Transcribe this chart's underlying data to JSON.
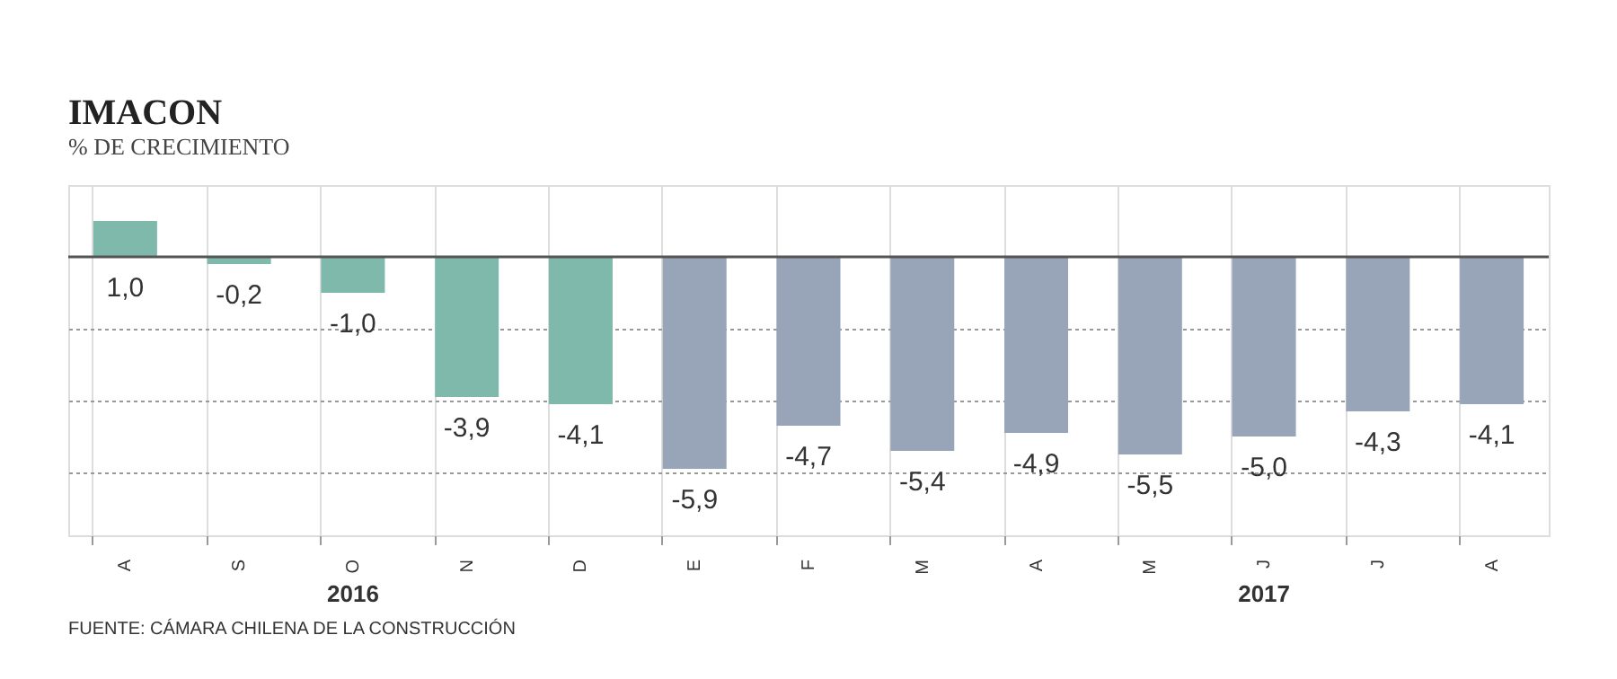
{
  "chart_data": {
    "type": "bar",
    "title": "IMACON",
    "subtitle": "% DE CRECIMIENTO",
    "categories": [
      "A",
      "S",
      "O",
      "N",
      "D",
      "E",
      "F",
      "M",
      "A",
      "M",
      "J",
      "J",
      "A"
    ],
    "values": [
      1.0,
      -0.2,
      -1.0,
      -3.9,
      -4.1,
      -5.9,
      -4.7,
      -5.4,
      -4.9,
      -5.5,
      -5.0,
      -4.3,
      -4.1
    ],
    "value_labels": [
      "1,0",
      "-0,2",
      "-1,0",
      "-3,9",
      "-4,1",
      "-5,9",
      "-4,7",
      "-5,4",
      "-4,9",
      "-5,5",
      "-5,0",
      "-4,3",
      "-4,1"
    ],
    "colors": [
      "#7fb9ab",
      "#7fb9ab",
      "#7fb9ab",
      "#7fb9ab",
      "#7fb9ab",
      "#98a5b8",
      "#98a5b8",
      "#98a5b8",
      "#98a5b8",
      "#98a5b8",
      "#98a5b8",
      "#98a5b8",
      "#98a5b8"
    ],
    "ylim": [
      -7.75,
      2
    ],
    "yticks": [
      {
        "value": -6,
        "label": null
      },
      {
        "value": -4,
        "label": null
      },
      {
        "value": -2,
        "label": null
      }
    ],
    "ref_lines": [
      {
        "axis": "y",
        "value": 0,
        "color": "#555555"
      }
    ],
    "grid": true,
    "tick_labels": "x",
    "annotations": [
      "2016",
      "2017",
      "FUENTE: CÁMARA CHILENA DE LA CONSTRUCCIÓN"
    ]
  }
}
